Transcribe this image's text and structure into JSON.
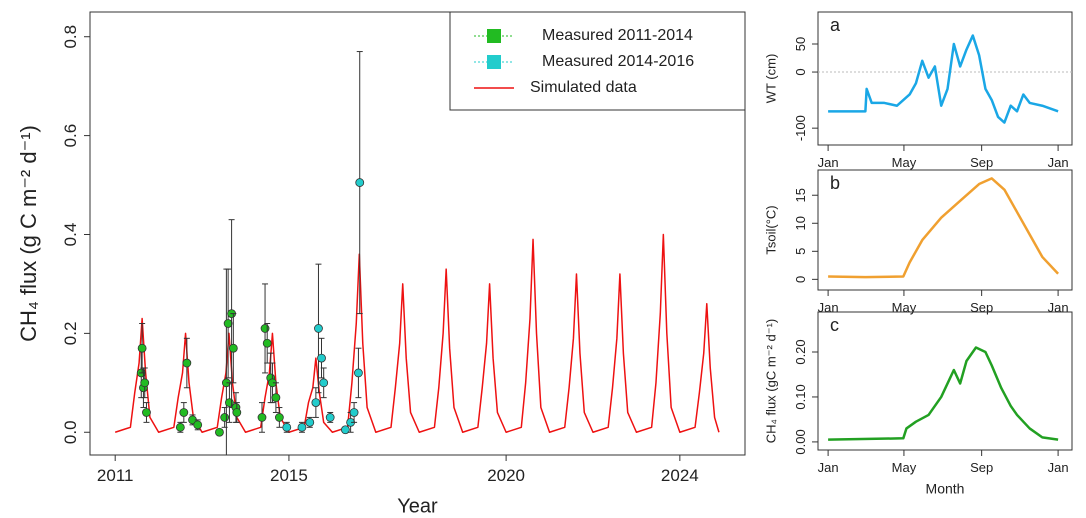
{
  "chart_data": [
    {
      "type": "line",
      "xlabel": "Year",
      "ylabel": "CH₄ flux (g C m⁻² d⁻¹)",
      "xlim": [
        2010.42,
        2025.5
      ],
      "xticks": [
        2011,
        2015,
        2020,
        2024
      ],
      "ylim": [
        -0.046,
        0.85
      ],
      "yticks": [
        {
          "value": 0,
          "label": "0.0"
        },
        0.2,
        0.4,
        0.6,
        0.8
      ],
      "legend": "top-right",
      "series": [
        {
          "name": "Simulated data",
          "type": "line",
          "color": "#ee1111",
          "x": [
            2011.0,
            2011.35,
            2011.45,
            2011.55,
            2011.62,
            2011.7,
            2011.8,
            2012.0,
            2012.35,
            2012.45,
            2012.55,
            2012.62,
            2012.7,
            2012.8,
            2013.0,
            2013.35,
            2013.45,
            2013.55,
            2013.62,
            2013.7,
            2013.8,
            2014.0,
            2014.35,
            2014.45,
            2014.55,
            2014.62,
            2014.7,
            2014.8,
            2015.0,
            2015.35,
            2015.45,
            2015.55,
            2015.62,
            2015.7,
            2015.8,
            2016.0,
            2016.35,
            2016.45,
            2016.55,
            2016.62,
            2016.7,
            2016.8,
            2017.0,
            2017.35,
            2017.45,
            2017.55,
            2017.62,
            2017.7,
            2017.8,
            2018.0,
            2018.35,
            2018.45,
            2018.55,
            2018.62,
            2018.7,
            2018.8,
            2019.0,
            2019.35,
            2019.45,
            2019.55,
            2019.62,
            2019.7,
            2019.8,
            2020.0,
            2020.35,
            2020.45,
            2020.55,
            2020.62,
            2020.7,
            2020.8,
            2021.0,
            2021.35,
            2021.45,
            2021.55,
            2021.62,
            2021.7,
            2021.8,
            2022.0,
            2022.35,
            2022.45,
            2022.55,
            2022.62,
            2022.7,
            2022.8,
            2023.0,
            2023.35,
            2023.45,
            2023.55,
            2023.62,
            2023.7,
            2023.8,
            2024.0,
            2024.35,
            2024.45,
            2024.55,
            2024.62,
            2024.7,
            2024.8,
            2024.9
          ],
          "values": [
            0,
            0.01,
            0.08,
            0.14,
            0.23,
            0.12,
            0.03,
            0,
            0.01,
            0.07,
            0.12,
            0.2,
            0.1,
            0.03,
            0,
            0.01,
            0.07,
            0.12,
            0.2,
            0.1,
            0.03,
            0,
            0.01,
            0.07,
            0.12,
            0.2,
            0.1,
            0.03,
            0,
            0.01,
            0.06,
            0.09,
            0.15,
            0.08,
            0.02,
            0,
            0.01,
            0.1,
            0.22,
            0.36,
            0.18,
            0.05,
            0,
            0.01,
            0.09,
            0.18,
            0.3,
            0.15,
            0.04,
            0,
            0.01,
            0.09,
            0.2,
            0.33,
            0.17,
            0.05,
            0,
            0.01,
            0.09,
            0.18,
            0.3,
            0.15,
            0.04,
            0,
            0.01,
            0.1,
            0.23,
            0.39,
            0.2,
            0.05,
            0,
            0.01,
            0.09,
            0.19,
            0.32,
            0.16,
            0.04,
            0,
            0.01,
            0.09,
            0.19,
            0.32,
            0.16,
            0.04,
            0,
            0.01,
            0.1,
            0.24,
            0.4,
            0.2,
            0.05,
            0,
            0.01,
            0.08,
            0.16,
            0.26,
            0.13,
            0.03,
            0
          ]
        },
        {
          "name": "Measured 2011-2014",
          "type": "scatter",
          "color": "#22bb22",
          "x": [
            2011.6,
            2011.62,
            2011.65,
            2011.68,
            2011.72,
            2012.5,
            2012.58,
            2012.65,
            2012.78,
            2012.9,
            2013.4,
            2013.52,
            2013.56,
            2013.6,
            2013.63,
            2013.68,
            2013.72,
            2013.78,
            2013.8,
            2014.38,
            2014.45,
            2014.5,
            2014.58,
            2014.62,
            2014.7,
            2014.78
          ],
          "values": [
            0.12,
            0.17,
            0.09,
            0.1,
            0.04,
            0.01,
            0.04,
            0.14,
            0.025,
            0.015,
            0,
            0.03,
            0.1,
            0.22,
            0.06,
            0.24,
            0.17,
            0.05,
            0.04,
            0.03,
            0.21,
            0.18,
            0.11,
            0.1,
            0.07,
            0.03
          ],
          "errors": [
            0.05,
            0.05,
            0.04,
            0.03,
            0.02,
            0.01,
            0.02,
            0.05,
            0.01,
            0.01,
            0.005,
            0.02,
            0.23,
            0.11,
            0.04,
            0.19,
            0.07,
            0.03,
            0.02,
            0.03,
            0.09,
            0.04,
            0.05,
            0.04,
            0.03,
            0.02
          ]
        },
        {
          "name": "Measured 2014-2016",
          "type": "scatter",
          "color": "#22cccc",
          "x": [
            2014.95,
            2015.3,
            2015.48,
            2015.62,
            2015.68,
            2015.75,
            2015.8,
            2015.95,
            2016.3,
            2016.42,
            2016.5,
            2016.6,
            2016.63
          ],
          "values": [
            0.01,
            0.01,
            0.02,
            0.06,
            0.21,
            0.15,
            0.1,
            0.03,
            0.005,
            0.02,
            0.04,
            0.12,
            0.505
          ],
          "errors": [
            0.01,
            0.01,
            0.01,
            0.03,
            0.13,
            0.04,
            0.03,
            0.01,
            0.005,
            0.02,
            0.02,
            0.05,
            0.265
          ]
        }
      ]
    },
    {
      "type": "line",
      "letter": "a",
      "ylabel": "WT (cm)",
      "xlim": [
        -15,
        387
      ],
      "xticks": [
        {
          "value": 1,
          "label": "Jan"
        },
        {
          "value": 121,
          "label": "May"
        },
        {
          "value": 244,
          "label": "Sep"
        },
        {
          "value": 365,
          "label": "Jan"
        }
      ],
      "ylim": [
        -130,
        107
      ],
      "yticks": [
        -100,
        0,
        50
      ],
      "zero_line": true,
      "x": [
        1,
        60,
        62,
        70,
        90,
        110,
        130,
        140,
        150,
        160,
        170,
        180,
        190,
        200,
        210,
        220,
        230,
        240,
        250,
        260,
        270,
        280,
        290,
        300,
        310,
        320,
        340,
        365
      ],
      "series": [
        {
          "color": "#1aa7e6",
          "values": [
            -70,
            -70,
            -30,
            -55,
            -55,
            -60,
            -40,
            -20,
            20,
            -10,
            10,
            -60,
            -30,
            50,
            10,
            40,
            65,
            30,
            -30,
            -50,
            -80,
            -90,
            -60,
            -70,
            -40,
            -55,
            -60,
            -70
          ]
        }
      ]
    },
    {
      "type": "line",
      "letter": "b",
      "ylabel": "Tsoil(°C)",
      "xlim": [
        -15,
        387
      ],
      "xticks": [
        {
          "value": 1,
          "label": "Jan"
        },
        {
          "value": 121,
          "label": "May"
        },
        {
          "value": 244,
          "label": "Sep"
        },
        {
          "value": 365,
          "label": "Jan"
        }
      ],
      "ylim": [
        -1.9,
        19.5
      ],
      "yticks": [
        0,
        5,
        10,
        15
      ],
      "x": [
        1,
        60,
        120,
        130,
        150,
        180,
        210,
        240,
        260,
        280,
        300,
        320,
        340,
        365
      ],
      "series": [
        {
          "color": "#f0a030",
          "values": [
            0.5,
            0.4,
            0.5,
            3,
            7,
            11,
            14,
            17,
            18,
            16,
            12,
            8,
            4,
            1
          ]
        }
      ]
    },
    {
      "type": "line",
      "letter": "c",
      "ylabel": "CH₄ flux (gC m⁻² d⁻¹)",
      "xlabel": "Month",
      "xlim": [
        -15,
        387
      ],
      "xticks": [
        {
          "value": 1,
          "label": "Jan"
        },
        {
          "value": 121,
          "label": "May"
        },
        {
          "value": 244,
          "label": "Sep"
        },
        {
          "value": 365,
          "label": "Jan"
        }
      ],
      "ylim": [
        -0.018,
        0.289
      ],
      "yticks": [
        {
          "value": 0,
          "label": "0.00"
        },
        {
          "value": 0.1,
          "label": "0.10"
        },
        {
          "value": 0.2,
          "label": "0.20"
        }
      ],
      "x": [
        1,
        120,
        125,
        140,
        160,
        180,
        200,
        210,
        220,
        235,
        250,
        260,
        275,
        290,
        300,
        320,
        340,
        365
      ],
      "series": [
        {
          "color": "#22a022",
          "values": [
            0.005,
            0.008,
            0.03,
            0.045,
            0.06,
            0.1,
            0.16,
            0.13,
            0.18,
            0.21,
            0.2,
            0.17,
            0.12,
            0.08,
            0.06,
            0.03,
            0.01,
            0.005
          ]
        }
      ]
    }
  ]
}
